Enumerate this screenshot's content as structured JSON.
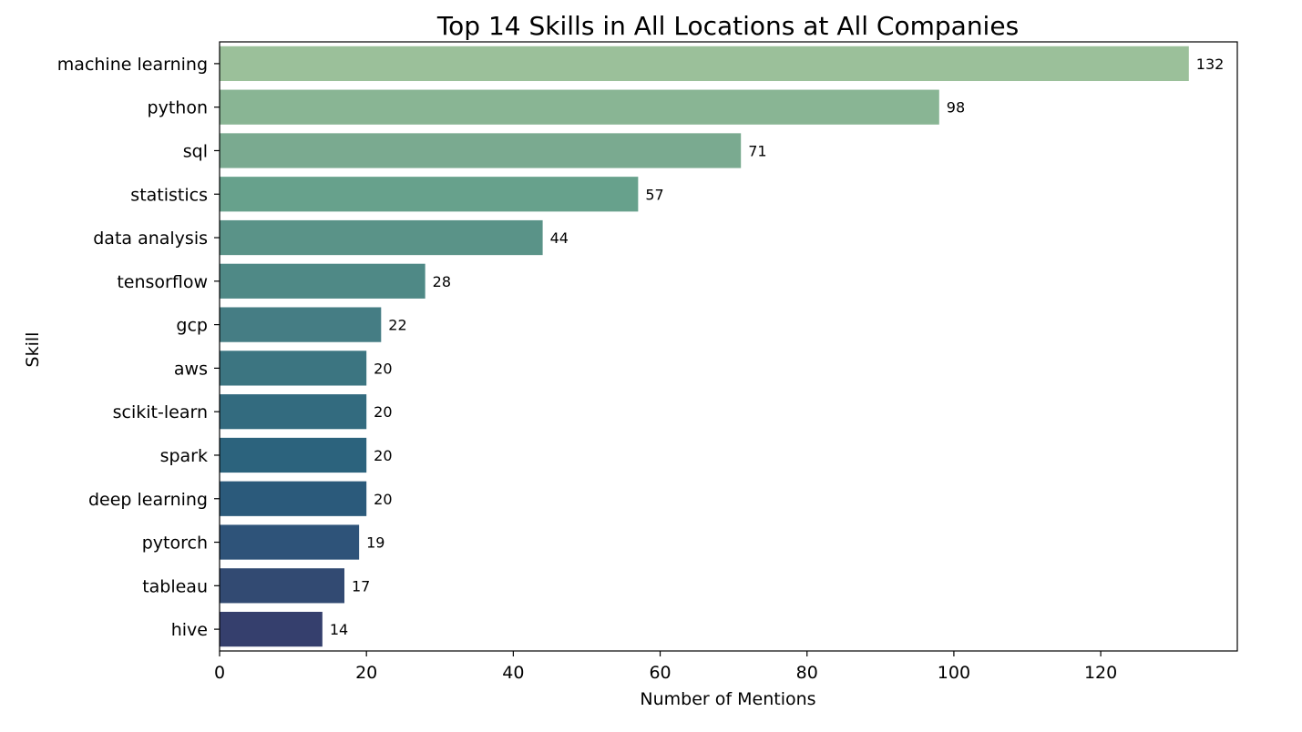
{
  "chart_data": {
    "type": "bar",
    "orientation": "horizontal",
    "title": "Top 14 Skills in All Locations at All Companies",
    "xlabel": "Number of Mentions",
    "ylabel": "Skill",
    "categories": [
      "machine learning",
      "python",
      "sql",
      "statistics",
      "data analysis",
      "tensorflow",
      "gcp",
      "aws",
      "scikit-learn",
      "spark",
      "deep learning",
      "pytorch",
      "tableau",
      "hive"
    ],
    "values": [
      132,
      98,
      71,
      57,
      44,
      28,
      22,
      20,
      20,
      20,
      20,
      19,
      17,
      14
    ],
    "data_labels": [
      "132",
      "98",
      "71",
      "57",
      "44",
      "28",
      "22",
      "20",
      "20",
      "20",
      "20",
      "19",
      "17",
      "14"
    ],
    "xlim": [
      0,
      138.6
    ],
    "xticks": [
      0,
      20,
      40,
      60,
      80,
      100,
      120
    ],
    "xtick_labels": [
      "0",
      "20",
      "40",
      "60",
      "80",
      "100",
      "120"
    ],
    "grid": false,
    "legend": "none",
    "colors": [
      "#9bc09a",
      "#89b594",
      "#7aaa90",
      "#67a18c",
      "#5a9388",
      "#4f8986",
      "#457d84",
      "#3c7581",
      "#336b7f",
      "#2c637d",
      "#2b5a7b",
      "#2e5379",
      "#324a72",
      "#353f6d"
    ]
  }
}
